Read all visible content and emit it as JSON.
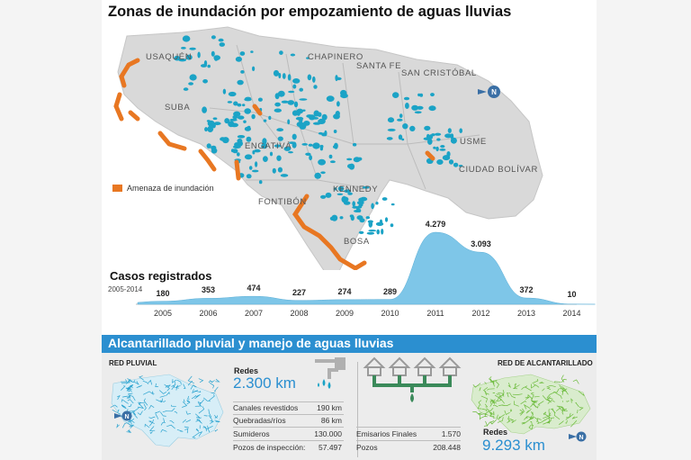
{
  "title": "Zonas de inundación por empozamiento de aguas lluvias",
  "map": {
    "districts": [
      "USAQUÉN",
      "CHAPINERO",
      "SANTA FE",
      "SAN CRISTÓBAL",
      "SUBA",
      "ENGATIVÁ",
      "USME",
      "CIUDAD BOLÍVAR",
      "FONTIBÓN",
      "KENNEDY",
      "BOSA"
    ],
    "legend_label": "Amenaza de inundación",
    "colors": {
      "flood_points": "#1ba3c6",
      "hazard": "#e87722",
      "land": "#d9d9d9"
    },
    "north_icon": "north-arrow-icon"
  },
  "cases": {
    "title": "Casos registrados",
    "subtitle": "2005-2014"
  },
  "chart_data": {
    "type": "area",
    "title": "Casos registrados",
    "subtitle": "2005-2014",
    "categories": [
      "2005",
      "2006",
      "2007",
      "2008",
      "2009",
      "2010",
      "2011",
      "2012",
      "2013",
      "2014"
    ],
    "values": [
      180,
      353,
      474,
      227,
      274,
      289,
      4279,
      3093,
      372,
      10
    ],
    "value_labels": [
      "180",
      "353",
      "474",
      "227",
      "274",
      "289",
      "4.279",
      "3.093",
      "372",
      "10"
    ],
    "color": "#7ec6e8"
  },
  "section": {
    "title": "Alcantarillado pluvial y  manejo de aguas lluvias",
    "left": {
      "map_label": "RED PLUVIAL",
      "redes_label": "Redes",
      "redes_value": "2.300 km",
      "rows": [
        {
          "label": "Canales revestidos",
          "value": "190 km"
        },
        {
          "label": "Quebradas/ríos",
          "value": "86 km"
        },
        {
          "label": "Sumideros",
          "value": "130.000"
        },
        {
          "label": "Pozos de inspección:",
          "value": "57.497"
        }
      ]
    },
    "right": {
      "map_label": "RED DE ALCANTARILLADO",
      "redes_label": "Redes",
      "redes_value": "9.293 km",
      "rows": [
        {
          "label": "Emisarios Finales",
          "value": "1.570"
        },
        {
          "label": "Pozos",
          "value": "208.448"
        }
      ]
    }
  }
}
